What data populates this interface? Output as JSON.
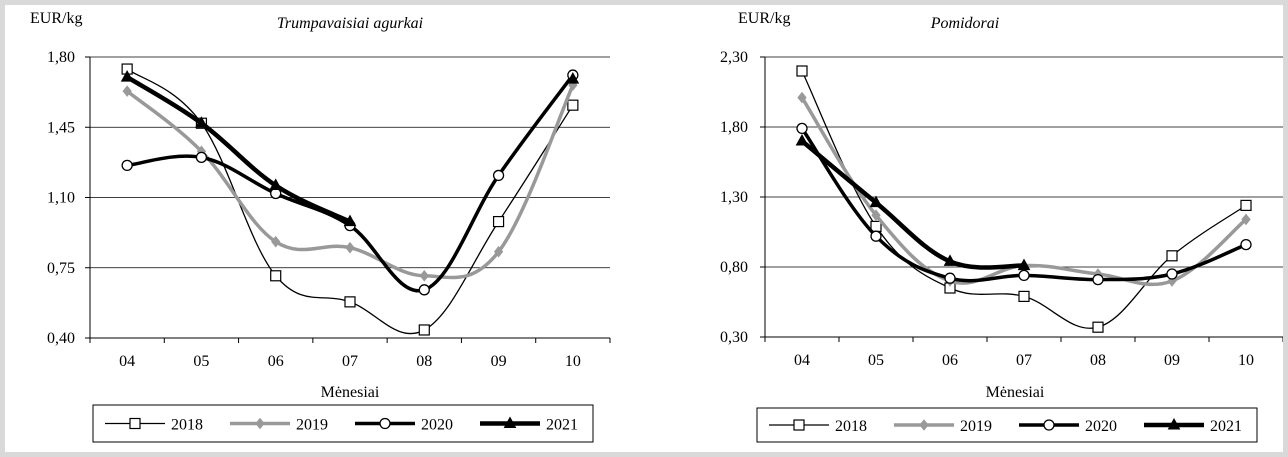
{
  "chart_data": [
    {
      "type": "line",
      "title": "Trumpavaisiai agurkai",
      "ylabel": "EUR/kg",
      "xlabel": "Mėnesiai",
      "categories": [
        "04",
        "05",
        "06",
        "07",
        "08",
        "09",
        "10"
      ],
      "yticks": [
        "0,40",
        "0,75",
        "1,10",
        "1,45",
        "1,80"
      ],
      "ylim": [
        0.4,
        1.8
      ],
      "grid": true,
      "legend": "bottom",
      "series": [
        {
          "name": "2018",
          "values": [
            1.74,
            1.47,
            0.71,
            0.58,
            0.44,
            0.98,
            1.56
          ],
          "color": "#000000",
          "marker": "square"
        },
        {
          "name": "2019",
          "values": [
            1.63,
            1.33,
            0.88,
            0.85,
            0.71,
            0.83,
            1.66
          ],
          "color": "#999999",
          "marker": "diamond"
        },
        {
          "name": "2020",
          "values": [
            1.26,
            1.3,
            1.12,
            0.96,
            0.64,
            1.21,
            1.71
          ],
          "color": "#000000",
          "marker": "circle"
        },
        {
          "name": "2021",
          "values": [
            1.7,
            1.47,
            1.16,
            0.98,
            null,
            null,
            1.69
          ],
          "color": "#000000",
          "marker": "triangle"
        }
      ]
    },
    {
      "type": "line",
      "title": "Pomidorai",
      "ylabel": "EUR/kg",
      "xlabel": "Mėnesiai",
      "categories": [
        "04",
        "05",
        "06",
        "07",
        "08",
        "09",
        "10"
      ],
      "yticks": [
        "0,30",
        "0,80",
        "1,30",
        "1,80",
        "2,30"
      ],
      "ylim": [
        0.3,
        2.3
      ],
      "grid": true,
      "legend": "bottom",
      "series": [
        {
          "name": "2018",
          "values": [
            2.2,
            1.09,
            0.65,
            0.59,
            0.37,
            0.88,
            1.24
          ],
          "color": "#000000",
          "marker": "square"
        },
        {
          "name": "2019",
          "values": [
            2.01,
            1.17,
            0.7,
            0.81,
            0.75,
            0.7,
            1.14
          ],
          "color": "#999999",
          "marker": "diamond"
        },
        {
          "name": "2020",
          "values": [
            1.79,
            1.02,
            0.72,
            0.74,
            0.71,
            0.75,
            0.96
          ],
          "color": "#000000",
          "marker": "circle"
        },
        {
          "name": "2021",
          "values": [
            1.7,
            1.26,
            0.84,
            0.81,
            null,
            null,
            null
          ],
          "color": "#000000",
          "marker": "triangle"
        }
      ]
    }
  ]
}
